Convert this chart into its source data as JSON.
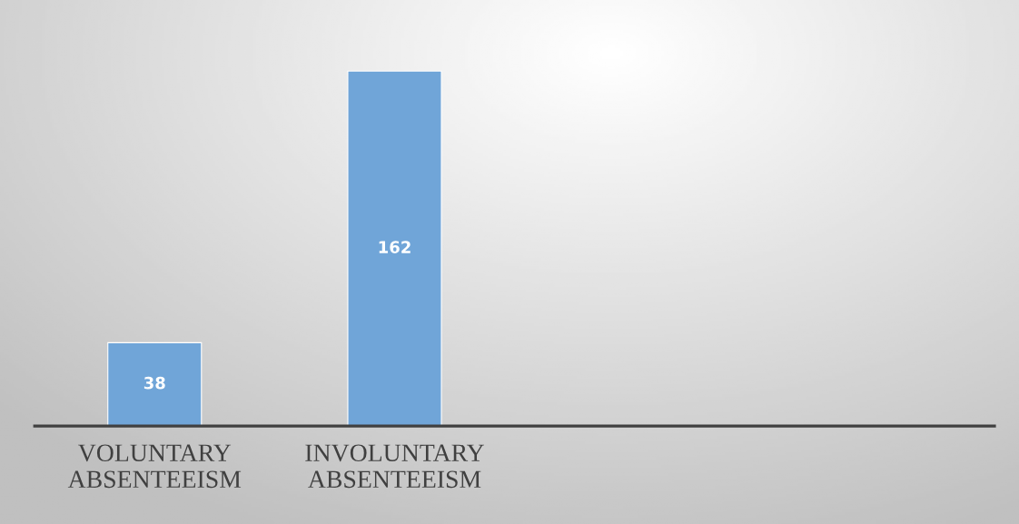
{
  "chart_data": {
    "type": "bar",
    "categories": [
      "VOLUNTARY ABSENTEEISM",
      "INVOLUNTARY ABSENTEEISM",
      null,
      null
    ],
    "values": [
      38,
      162,
      null,
      null
    ],
    "color": "#70a5d8",
    "data_labels": true,
    "grid": false,
    "legend": false,
    "tick_labels": "x"
  }
}
